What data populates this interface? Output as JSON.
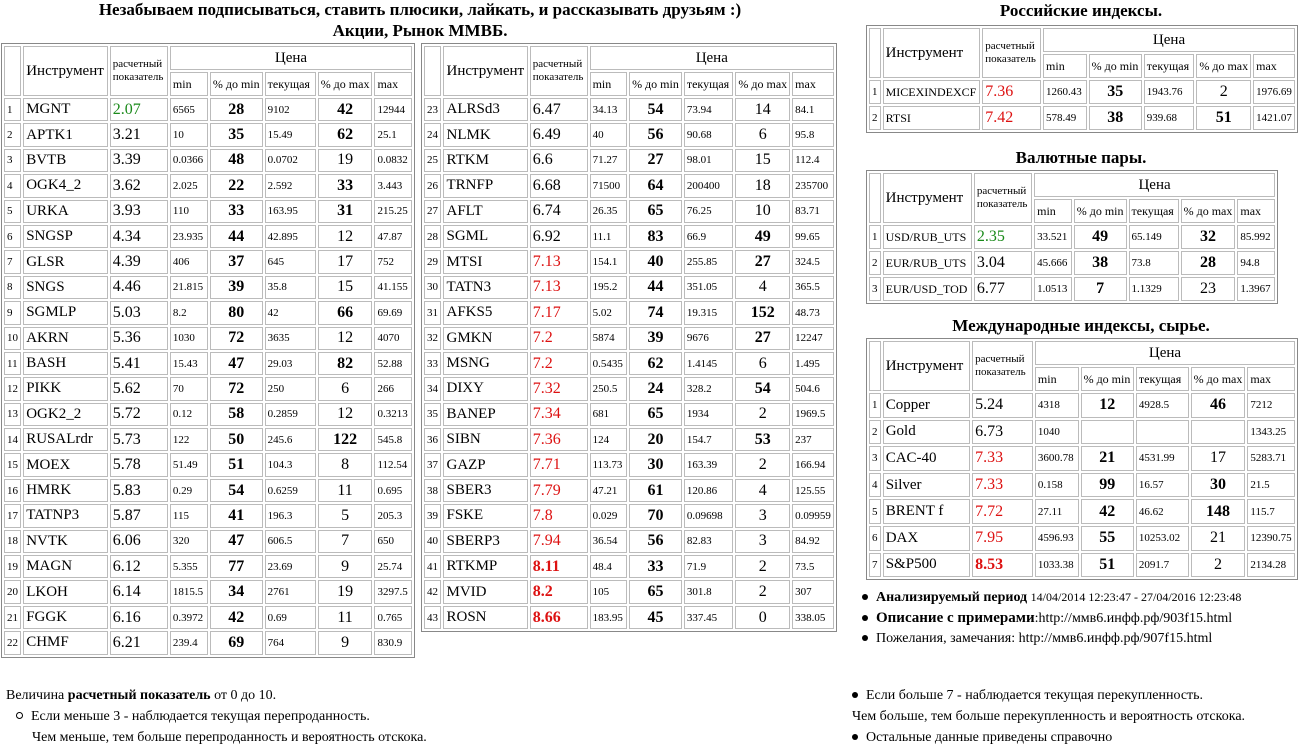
{
  "header": {
    "line1": "Незабываем подписываться, ставить плюсики, лайкать, и рассказывать друзьям :)",
    "line2_pre": "Акции, Рынок ММВБ",
    "line2_post": "."
  },
  "table_headers": {
    "instrument": "Инструмент",
    "calc": "расчетный показатель",
    "price": "Цена",
    "min": "min",
    "pct_min": "% до min",
    "current": "текущая",
    "pct_max": "% до max",
    "max": "max"
  },
  "stocks_left": [
    {
      "n": "1",
      "name": "MGNT",
      "calc": "2.07",
      "min": "6565",
      "pmin": "28",
      "cur": "9102",
      "pmax": "42",
      "max": "12944"
    },
    {
      "n": "2",
      "name": "APTK1",
      "calc": "3.21",
      "min": "10",
      "pmin": "35",
      "cur": "15.49",
      "pmax": "62",
      "max": "25.1"
    },
    {
      "n": "3",
      "name": "BVTB",
      "calc": "3.39",
      "min": "0.0366",
      "pmin": "48",
      "cur": "0.0702",
      "pmax": "19",
      "max": "0.0832"
    },
    {
      "n": "4",
      "name": "OGK4_2",
      "calc": "3.62",
      "min": "2.025",
      "pmin": "22",
      "cur": "2.592",
      "pmax": "33",
      "max": "3.443"
    },
    {
      "n": "5",
      "name": "URKA",
      "calc": "3.93",
      "min": "110",
      "pmin": "33",
      "cur": "163.95",
      "pmax": "31",
      "max": "215.25"
    },
    {
      "n": "6",
      "name": "SNGSP",
      "calc": "4.34",
      "min": "23.935",
      "pmin": "44",
      "cur": "42.895",
      "pmax": "12",
      "max": "47.87"
    },
    {
      "n": "7",
      "name": "GLSR",
      "calc": "4.39",
      "min": "406",
      "pmin": "37",
      "cur": "645",
      "pmax": "17",
      "max": "752"
    },
    {
      "n": "8",
      "name": "SNGS",
      "calc": "4.46",
      "min": "21.815",
      "pmin": "39",
      "cur": "35.8",
      "pmax": "15",
      "max": "41.155"
    },
    {
      "n": "9",
      "name": "SGMLP",
      "calc": "5.03",
      "min": "8.2",
      "pmin": "80",
      "cur": "42",
      "pmax": "66",
      "max": "69.69"
    },
    {
      "n": "10",
      "name": "AKRN",
      "calc": "5.36",
      "min": "1030",
      "pmin": "72",
      "cur": "3635",
      "pmax": "12",
      "max": "4070"
    },
    {
      "n": "11",
      "name": "BASH",
      "calc": "5.41",
      "min": "15.43",
      "pmin": "47",
      "cur": "29.03",
      "pmax": "82",
      "max": "52.88"
    },
    {
      "n": "12",
      "name": "PIKK",
      "calc": "5.62",
      "min": "70",
      "pmin": "72",
      "cur": "250",
      "pmax": "6",
      "max": "266"
    },
    {
      "n": "13",
      "name": "OGK2_2",
      "calc": "5.72",
      "min": "0.12",
      "pmin": "58",
      "cur": "0.2859",
      "pmax": "12",
      "max": "0.3213"
    },
    {
      "n": "14",
      "name": "RUSALrdr",
      "calc": "5.73",
      "min": "122",
      "pmin": "50",
      "cur": "245.6",
      "pmax": "122",
      "max": "545.8"
    },
    {
      "n": "15",
      "name": "MOEX",
      "calc": "5.78",
      "min": "51.49",
      "pmin": "51",
      "cur": "104.3",
      "pmax": "8",
      "max": "112.54"
    },
    {
      "n": "16",
      "name": "HMRK",
      "calc": "5.83",
      "min": "0.29",
      "pmin": "54",
      "cur": "0.6259",
      "pmax": "11",
      "max": "0.695"
    },
    {
      "n": "17",
      "name": "TATNP3",
      "calc": "5.87",
      "min": "115",
      "pmin": "41",
      "cur": "196.3",
      "pmax": "5",
      "max": "205.3"
    },
    {
      "n": "18",
      "name": "NVTK",
      "calc": "6.06",
      "min": "320",
      "pmin": "47",
      "cur": "606.5",
      "pmax": "7",
      "max": "650"
    },
    {
      "n": "19",
      "name": "MAGN",
      "calc": "6.12",
      "min": "5.355",
      "pmin": "77",
      "cur": "23.69",
      "pmax": "9",
      "max": "25.74"
    },
    {
      "n": "20",
      "name": "LKOH",
      "calc": "6.14",
      "min": "1815.5",
      "pmin": "34",
      "cur": "2761",
      "pmax": "19",
      "max": "3297.5"
    },
    {
      "n": "21",
      "name": "FGGK",
      "calc": "6.16",
      "min": "0.3972",
      "pmin": "42",
      "cur": "0.69",
      "pmax": "11",
      "max": "0.765"
    },
    {
      "n": "22",
      "name": "CHMF",
      "calc": "6.21",
      "min": "239.4",
      "pmin": "69",
      "cur": "764",
      "pmax": "9",
      "max": "830.9"
    }
  ],
  "stocks_right": [
    {
      "n": "23",
      "name": "ALRSd3",
      "calc": "6.47",
      "min": "34.13",
      "pmin": "54",
      "cur": "73.94",
      "pmax": "14",
      "max": "84.1"
    },
    {
      "n": "24",
      "name": "NLMK",
      "calc": "6.49",
      "min": "40",
      "pmin": "56",
      "cur": "90.68",
      "pmax": "6",
      "max": "95.8"
    },
    {
      "n": "25",
      "name": "RTKM",
      "calc": "6.6",
      "min": "71.27",
      "pmin": "27",
      "cur": "98.01",
      "pmax": "15",
      "max": "112.4"
    },
    {
      "n": "26",
      "name": "TRNFP",
      "calc": "6.68",
      "min": "71500",
      "pmin": "64",
      "cur": "200400",
      "pmax": "18",
      "max": "235700"
    },
    {
      "n": "27",
      "name": "AFLT",
      "calc": "6.74",
      "min": "26.35",
      "pmin": "65",
      "cur": "76.25",
      "pmax": "10",
      "max": "83.71"
    },
    {
      "n": "28",
      "name": "SGML",
      "calc": "6.92",
      "min": "11.1",
      "pmin": "83",
      "cur": "66.9",
      "pmax": "49",
      "max": "99.65"
    },
    {
      "n": "29",
      "name": "MTSI",
      "calc": "7.13",
      "min": "154.1",
      "pmin": "40",
      "cur": "255.85",
      "pmax": "27",
      "max": "324.5"
    },
    {
      "n": "30",
      "name": "TATN3",
      "calc": "7.13",
      "min": "195.2",
      "pmin": "44",
      "cur": "351.05",
      "pmax": "4",
      "max": "365.5"
    },
    {
      "n": "31",
      "name": "AFKS5",
      "calc": "7.17",
      "min": "5.02",
      "pmin": "74",
      "cur": "19.315",
      "pmax": "152",
      "max": "48.73"
    },
    {
      "n": "32",
      "name": "GMKN",
      "calc": "7.2",
      "min": "5874",
      "pmin": "39",
      "cur": "9676",
      "pmax": "27",
      "max": "12247"
    },
    {
      "n": "33",
      "name": "MSNG",
      "calc": "7.2",
      "min": "0.5435",
      "pmin": "62",
      "cur": "1.4145",
      "pmax": "6",
      "max": "1.495"
    },
    {
      "n": "34",
      "name": "DIXY",
      "calc": "7.32",
      "min": "250.5",
      "pmin": "24",
      "cur": "328.2",
      "pmax": "54",
      "max": "504.6"
    },
    {
      "n": "35",
      "name": "BANEP",
      "calc": "7.34",
      "min": "681",
      "pmin": "65",
      "cur": "1934",
      "pmax": "2",
      "max": "1969.5"
    },
    {
      "n": "36",
      "name": "SIBN",
      "calc": "7.36",
      "min": "124",
      "pmin": "20",
      "cur": "154.7",
      "pmax": "53",
      "max": "237"
    },
    {
      "n": "37",
      "name": "GAZP",
      "calc": "7.71",
      "min": "113.73",
      "pmin": "30",
      "cur": "163.39",
      "pmax": "2",
      "max": "166.94"
    },
    {
      "n": "38",
      "name": "SBER3",
      "calc": "7.79",
      "min": "47.21",
      "pmin": "61",
      "cur": "120.86",
      "pmax": "4",
      "max": "125.55"
    },
    {
      "n": "39",
      "name": "FSKE",
      "calc": "7.8",
      "min": "0.029",
      "pmin": "70",
      "cur": "0.09698",
      "pmax": "3",
      "max": "0.09959"
    },
    {
      "n": "40",
      "name": "SBERP3",
      "calc": "7.94",
      "min": "36.54",
      "pmin": "56",
      "cur": "82.83",
      "pmax": "3",
      "max": "84.92"
    },
    {
      "n": "41",
      "name": "RTKMP",
      "calc": "8.11",
      "min": "48.4",
      "pmin": "33",
      "cur": "71.9",
      "pmax": "2",
      "max": "73.5"
    },
    {
      "n": "42",
      "name": "MVID",
      "calc": "8.2",
      "min": "105",
      "pmin": "65",
      "cur": "301.8",
      "pmax": "2",
      "max": "307"
    },
    {
      "n": "43",
      "name": "ROSN",
      "calc": "8.66",
      "min": "183.95",
      "pmin": "45",
      "cur": "337.45",
      "pmax": "0",
      "max": "338.05"
    }
  ],
  "russian_indices": {
    "title": "Российские индексы",
    "rows": [
      {
        "n": "1",
        "name": "MICEXINDEXCF",
        "calc": "7.36",
        "min": "1260.43",
        "pmin": "35",
        "cur": "1943.76",
        "pmax": "2",
        "max": "1976.69"
      },
      {
        "n": "2",
        "name": "RTSI",
        "calc": "7.42",
        "min": "578.49",
        "pmin": "38",
        "cur": "939.68",
        "pmax": "51",
        "max": "1421.07"
      }
    ]
  },
  "currency_pairs": {
    "title": "Валютные пары",
    "rows": [
      {
        "n": "1",
        "name": "USD/RUB_UTS",
        "calc": "2.35",
        "min": "33.521",
        "pmin": "49",
        "cur": "65.149",
        "pmax": "32",
        "max": "85.992"
      },
      {
        "n": "2",
        "name": "EUR/RUB_UTS",
        "calc": "3.04",
        "min": "45.666",
        "pmin": "38",
        "cur": "73.8",
        "pmax": "28",
        "max": "94.8"
      },
      {
        "n": "3",
        "name": "EUR/USD_TOD",
        "calc": "6.77",
        "min": "1.0513",
        "pmin": "7",
        "cur": "1.1329",
        "pmax": "23",
        "max": "1.3967"
      }
    ]
  },
  "international": {
    "title": "Международные индексы, сырье",
    "rows": [
      {
        "n": "1",
        "name": "Copper",
        "calc": "5.24",
        "min": "4318",
        "pmin": "12",
        "cur": "4928.5",
        "pmax": "46",
        "max": "7212"
      },
      {
        "n": "2",
        "name": "Gold",
        "calc": "6.73",
        "min": "1040",
        "pmin": "",
        "cur": "",
        "pmax": "",
        "max": "1343.25"
      },
      {
        "n": "3",
        "name": "CAC-40",
        "calc": "7.33",
        "min": "3600.78",
        "pmin": "21",
        "cur": "4531.99",
        "pmax": "17",
        "max": "5283.71"
      },
      {
        "n": "4",
        "name": "Silver",
        "calc": "7.33",
        "min": "0.158",
        "pmin": "99",
        "cur": "16.57",
        "pmax": "30",
        "max": "21.5"
      },
      {
        "n": "5",
        "name": "BRENT f",
        "calc": "7.72",
        "min": "27.11",
        "pmin": "42",
        "cur": "46.62",
        "pmax": "148",
        "max": "115.7"
      },
      {
        "n": "6",
        "name": "DAX",
        "calc": "7.95",
        "min": "4596.93",
        "pmin": "55",
        "cur": "10253.02",
        "pmax": "21",
        "max": "12390.75"
      },
      {
        "n": "7",
        "name": "S&P500",
        "calc": "8.53",
        "min": "1033.38",
        "pmin": "51",
        "cur": "2091.7",
        "pmax": "2",
        "max": "2134.28"
      }
    ]
  },
  "info": {
    "period_label": "Анализируемый период",
    "period_value": "14/04/2014 12:23:47 - 27/04/2016 12:23:48",
    "desc_label": "Описание с примерами",
    "desc_value": ":http://ммв6.инфф.рф/903f15.html",
    "wishes": "Пожелания, замечания: http://ммв6.инфф.рф/907f15.html"
  },
  "footer": {
    "left_pre": "Величина ",
    "left_bold": "расчетный показатель",
    "left_post": " от 0 до 10.",
    "left_item": "Если меньше 3 - наблюдается текущая перепроданность.",
    "left_sub": "Чем меньше, тем больше перепроданность и вероятность отскока.",
    "right_item1": "Если больше 7 - наблюдается текущая перекупленность.",
    "right_sub": "Чем больше, тем больше перекупленность и вероятность отскока.",
    "right_item2": "Остальные данные приведены справочно"
  },
  "colors": {
    "green": "#1a8a1a",
    "red": "#dd1111"
  }
}
